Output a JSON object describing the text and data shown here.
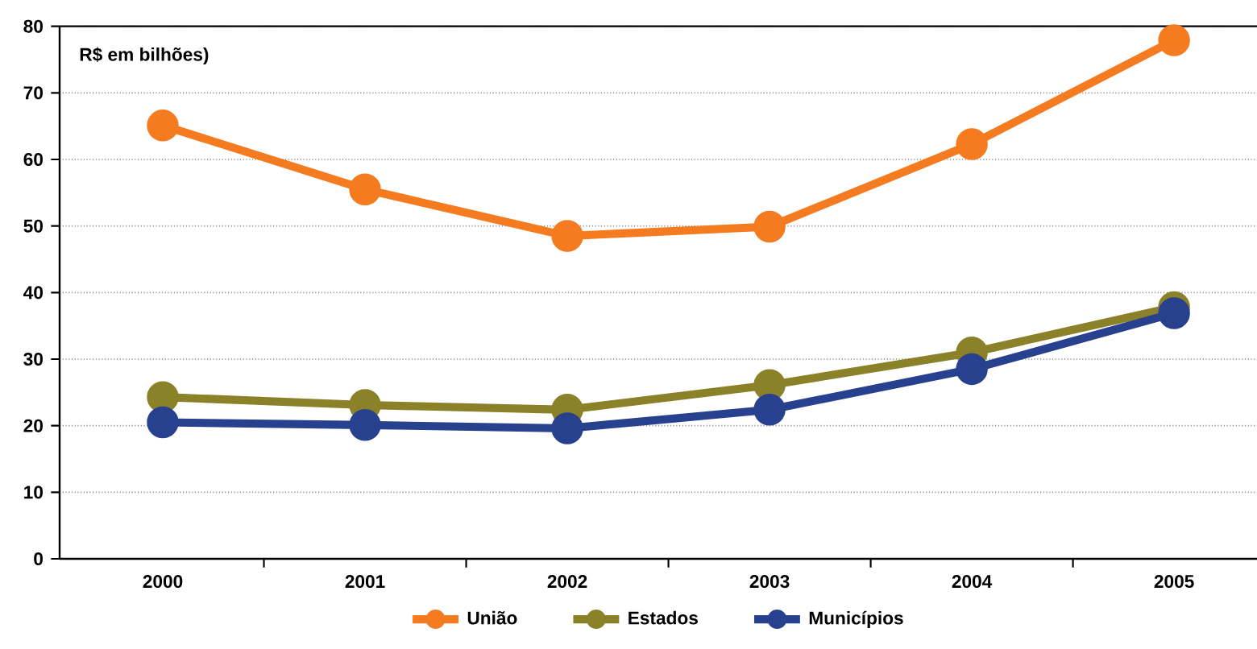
{
  "chart_data": {
    "type": "line",
    "ylabel": "R$ em bilhões)",
    "categories": [
      "2000",
      "2001",
      "2002",
      "2003",
      "2004",
      "2005"
    ],
    "series": [
      {
        "name": "União",
        "color": "#f47b20",
        "values": [
          65.1,
          55.5,
          48.5,
          49.9,
          62.3,
          77.9
        ]
      },
      {
        "name": "Estados",
        "color": "#8a8128",
        "values": [
          24.3,
          23.1,
          22.4,
          26.1,
          31.0,
          37.8
        ]
      },
      {
        "name": "Municípios",
        "color": "#27418f",
        "values": [
          20.5,
          20.1,
          19.6,
          22.4,
          28.5,
          36.9
        ]
      }
    ],
    "ylim": [
      0,
      80
    ],
    "yticks": [
      0,
      10,
      20,
      30,
      40,
      50,
      60,
      70,
      80
    ],
    "grid": "y",
    "legend": "bottom",
    "marker": "circle",
    "line_style": "solid"
  }
}
